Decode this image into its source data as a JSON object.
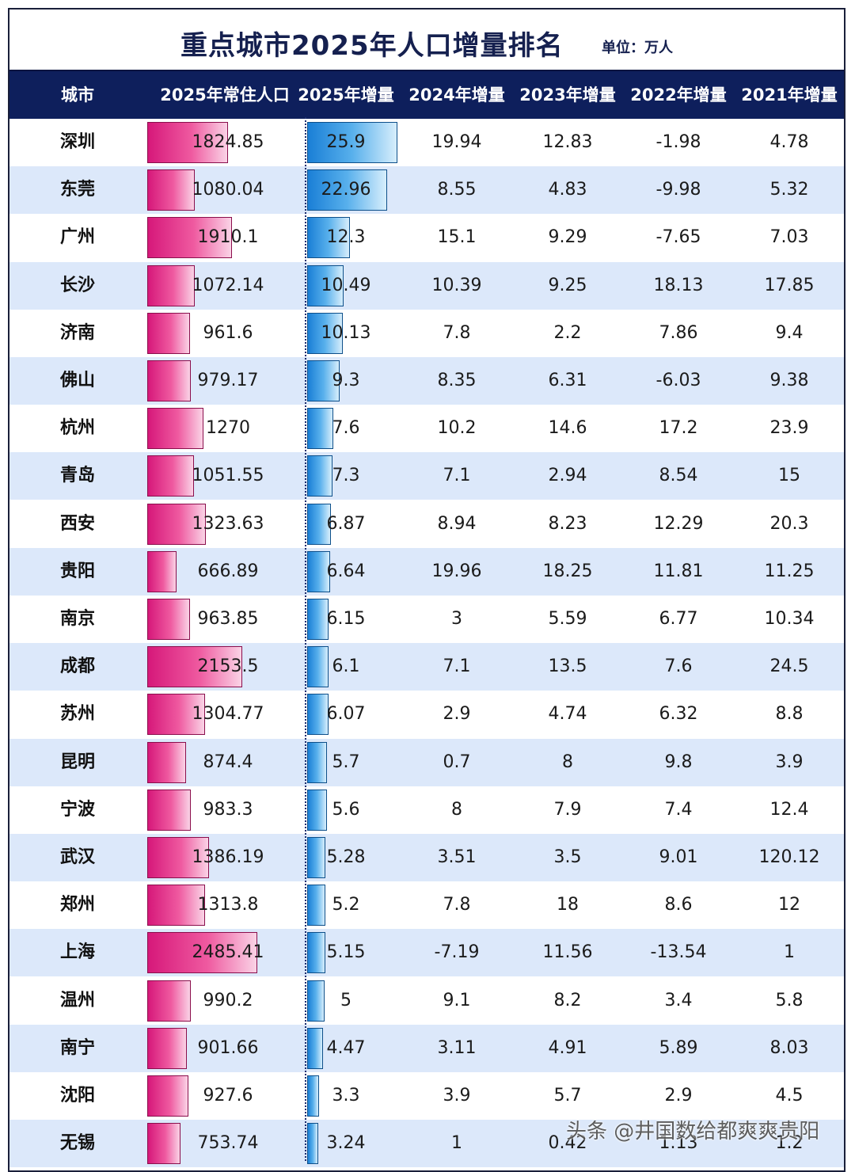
{
  "title": "重点城市2025年人口增量排名",
  "unit": "单位：万人",
  "watermark": "头条 @井国数给都爽爽贵阳",
  "colors": {
    "header_bg": "#0e1f5c",
    "pop_bar": "#d6187a",
    "inc_bar": "#1a7fd6",
    "row_alt": "#dce8fa"
  },
  "headers": [
    "城市",
    "2025年常住人口",
    "2025年增量",
    "2024年增量",
    "2023年增量",
    "2022年增量",
    "2021年增量"
  ],
  "rows": [
    {
      "city": "深圳",
      "pop": "1824.85",
      "inc2025": "25.9",
      "inc2024": "19.94",
      "inc2023": "12.83",
      "inc2022": "-1.98",
      "inc2021": "4.78"
    },
    {
      "city": "东莞",
      "pop": "1080.04",
      "inc2025": "22.96",
      "inc2024": "8.55",
      "inc2023": "4.83",
      "inc2022": "-9.98",
      "inc2021": "5.32"
    },
    {
      "city": "广州",
      "pop": "1910.1",
      "inc2025": "12.3",
      "inc2024": "15.1",
      "inc2023": "9.29",
      "inc2022": "-7.65",
      "inc2021": "7.03"
    },
    {
      "city": "长沙",
      "pop": "1072.14",
      "inc2025": "10.49",
      "inc2024": "10.39",
      "inc2023": "9.25",
      "inc2022": "18.13",
      "inc2021": "17.85"
    },
    {
      "city": "济南",
      "pop": "961.6",
      "inc2025": "10.13",
      "inc2024": "7.8",
      "inc2023": "2.2",
      "inc2022": "7.86",
      "inc2021": "9.4"
    },
    {
      "city": "佛山",
      "pop": "979.17",
      "inc2025": "9.3",
      "inc2024": "8.35",
      "inc2023": "6.31",
      "inc2022": "-6.03",
      "inc2021": "9.38"
    },
    {
      "city": "杭州",
      "pop": "1270",
      "inc2025": "7.6",
      "inc2024": "10.2",
      "inc2023": "14.6",
      "inc2022": "17.2",
      "inc2021": "23.9"
    },
    {
      "city": "青岛",
      "pop": "1051.55",
      "inc2025": "7.3",
      "inc2024": "7.1",
      "inc2023": "2.94",
      "inc2022": "8.54",
      "inc2021": "15"
    },
    {
      "city": "西安",
      "pop": "1323.63",
      "inc2025": "6.87",
      "inc2024": "8.94",
      "inc2023": "8.23",
      "inc2022": "12.29",
      "inc2021": "20.3"
    },
    {
      "city": "贵阳",
      "pop": "666.89",
      "inc2025": "6.64",
      "inc2024": "19.96",
      "inc2023": "18.25",
      "inc2022": "11.81",
      "inc2021": "11.25"
    },
    {
      "city": "南京",
      "pop": "963.85",
      "inc2025": "6.15",
      "inc2024": "3",
      "inc2023": "5.59",
      "inc2022": "6.77",
      "inc2021": "10.34"
    },
    {
      "city": "成都",
      "pop": "2153.5",
      "inc2025": "6.1",
      "inc2024": "7.1",
      "inc2023": "13.5",
      "inc2022": "7.6",
      "inc2021": "24.5"
    },
    {
      "city": "苏州",
      "pop": "1304.77",
      "inc2025": "6.07",
      "inc2024": "2.9",
      "inc2023": "4.74",
      "inc2022": "6.32",
      "inc2021": "8.8"
    },
    {
      "city": "昆明",
      "pop": "874.4",
      "inc2025": "5.7",
      "inc2024": "0.7",
      "inc2023": "8",
      "inc2022": "9.8",
      "inc2021": "3.9"
    },
    {
      "city": "宁波",
      "pop": "983.3",
      "inc2025": "5.6",
      "inc2024": "8",
      "inc2023": "7.9",
      "inc2022": "7.4",
      "inc2021": "12.4"
    },
    {
      "city": "武汉",
      "pop": "1386.19",
      "inc2025": "5.28",
      "inc2024": "3.51",
      "inc2023": "3.5",
      "inc2022": "9.01",
      "inc2021": "120.12"
    },
    {
      "city": "郑州",
      "pop": "1313.8",
      "inc2025": "5.2",
      "inc2024": "7.8",
      "inc2023": "18",
      "inc2022": "8.6",
      "inc2021": "12"
    },
    {
      "city": "上海",
      "pop": "2485.41",
      "inc2025": "5.15",
      "inc2024": "-7.19",
      "inc2023": "11.56",
      "inc2022": "-13.54",
      "inc2021": "1"
    },
    {
      "city": "温州",
      "pop": "990.2",
      "inc2025": "5",
      "inc2024": "9.1",
      "inc2023": "8.2",
      "inc2022": "3.4",
      "inc2021": "5.8"
    },
    {
      "city": "南宁",
      "pop": "901.66",
      "inc2025": "4.47",
      "inc2024": "3.11",
      "inc2023": "4.91",
      "inc2022": "5.89",
      "inc2021": "8.03"
    },
    {
      "city": "沈阳",
      "pop": "927.6",
      "inc2025": "3.3",
      "inc2024": "3.9",
      "inc2023": "5.7",
      "inc2022": "2.9",
      "inc2021": "4.5"
    },
    {
      "city": "无锡",
      "pop": "753.74",
      "inc2025": "3.24",
      "inc2024": "1",
      "inc2023": "0.42",
      "inc2022": "1.13",
      "inc2021": "1.2"
    }
  ],
  "chart_data": {
    "type": "table",
    "title": "重点城市2025年人口增量排名",
    "unit": "单位：万人",
    "columns": [
      "城市",
      "2025年常住人口",
      "2025年增量",
      "2024年增量",
      "2023年增量",
      "2022年增量",
      "2021年增量"
    ],
    "categories": [
      "深圳",
      "东莞",
      "广州",
      "长沙",
      "济南",
      "佛山",
      "杭州",
      "青岛",
      "西安",
      "贵阳",
      "南京",
      "成都",
      "苏州",
      "昆明",
      "宁波",
      "武汉",
      "郑州",
      "上海",
      "温州",
      "南宁",
      "沈阳",
      "无锡"
    ],
    "series": [
      {
        "name": "2025年常住人口",
        "values": [
          1824.85,
          1080.04,
          1910.1,
          1072.14,
          961.6,
          979.17,
          1270,
          1051.55,
          1323.63,
          666.89,
          963.85,
          2153.5,
          1304.77,
          874.4,
          983.3,
          1386.19,
          1313.8,
          2485.41,
          990.2,
          901.66,
          927.6,
          753.74
        ]
      },
      {
        "name": "2025年增量",
        "values": [
          25.9,
          22.96,
          12.3,
          10.49,
          10.13,
          9.3,
          7.6,
          7.3,
          6.87,
          6.64,
          6.15,
          6.1,
          6.07,
          5.7,
          5.6,
          5.28,
          5.2,
          5.15,
          5,
          4.47,
          3.3,
          3.24
        ]
      },
      {
        "name": "2024年增量",
        "values": [
          19.94,
          8.55,
          15.1,
          10.39,
          7.8,
          8.35,
          10.2,
          7.1,
          8.94,
          19.96,
          3,
          7.1,
          2.9,
          0.7,
          8,
          3.51,
          7.8,
          -7.19,
          9.1,
          3.11,
          3.9,
          1
        ]
      },
      {
        "name": "2023年增量",
        "values": [
          12.83,
          4.83,
          9.29,
          9.25,
          2.2,
          6.31,
          14.6,
          2.94,
          8.23,
          18.25,
          5.59,
          13.5,
          4.74,
          8,
          7.9,
          3.5,
          18,
          11.56,
          8.2,
          4.91,
          5.7,
          0.42
        ]
      },
      {
        "name": "2022年增量",
        "values": [
          -1.98,
          -9.98,
          -7.65,
          18.13,
          7.86,
          -6.03,
          17.2,
          8.54,
          12.29,
          11.81,
          6.77,
          7.6,
          6.32,
          9.8,
          7.4,
          9.01,
          8.6,
          -13.54,
          3.4,
          5.89,
          2.9,
          1.13
        ]
      },
      {
        "name": "2021年增量",
        "values": [
          4.78,
          5.32,
          7.03,
          17.85,
          9.4,
          9.38,
          23.9,
          15,
          20.3,
          11.25,
          10.34,
          24.5,
          8.8,
          3.9,
          12.4,
          120.12,
          12,
          1,
          5.8,
          8.03,
          4.5,
          1.2
        ]
      }
    ]
  }
}
